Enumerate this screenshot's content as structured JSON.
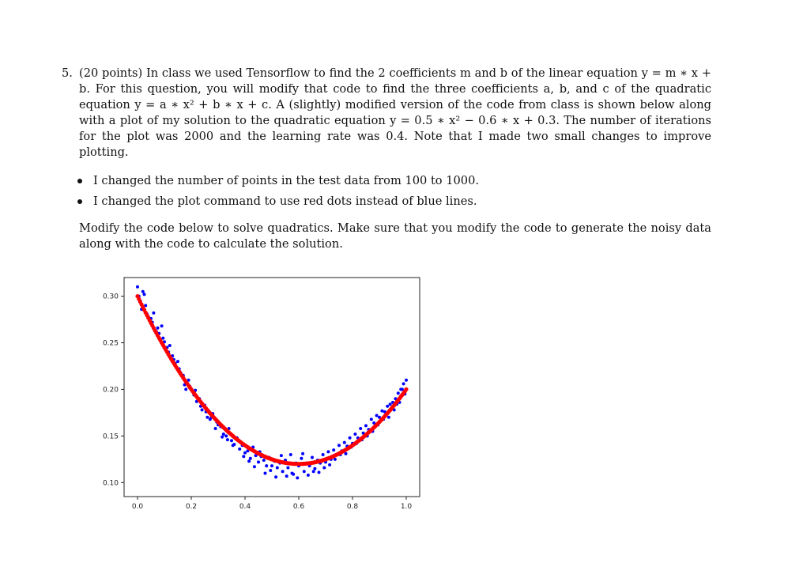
{
  "problem": {
    "number": "5.",
    "intro": "(20 points) In class we used Tensorflow to find the 2 coefficients m and b of the linear equation y = m ∗ x + b. For this question, you will modify that code to find the three coefficients a, b, and c of the quadratic equation y = a ∗ x² + b ∗ x + c. A (slightly) modified version of the code from class is shown below along with a plot of my solution to the quadratic equation y = 0.5 ∗ x² − 0.6 ∗ x + 0.3. The number of iterations for the plot was 2000 and the learning rate was 0.4. Note that I made two small changes to improve plotting.",
    "bullets": [
      "I changed the number of points in the test data from 100 to 1000.",
      "I changed the plot command to use red dots instead of blue lines."
    ],
    "instruction": "Modify the code below to solve quadratics. Make sure that you modify the code to generate the noisy data along with the code to calculate the solution."
  },
  "chart_data": {
    "type": "scatter",
    "xlim": [
      -0.05,
      1.05
    ],
    "ylim": [
      0.085,
      0.32
    ],
    "xticks": [
      "0.0",
      "0.2",
      "0.4",
      "0.6",
      "0.8",
      "1.0"
    ],
    "xtick_values": [
      0.0,
      0.2,
      0.4,
      0.6,
      0.8,
      1.0
    ],
    "yticks": [
      "0.10",
      "0.15",
      "0.20",
      "0.25",
      "0.30"
    ],
    "ytick_values": [
      0.1,
      0.15,
      0.2,
      0.25,
      0.3
    ],
    "series": [
      {
        "kind": "noisy data points",
        "color": "#0000ff",
        "points": [
          [
            0.0,
            0.31
          ],
          [
            0.01,
            0.295
          ],
          [
            0.02,
            0.305
          ],
          [
            0.03,
            0.29
          ],
          [
            0.04,
            0.278
          ],
          [
            0.05,
            0.276
          ],
          [
            0.06,
            0.282
          ],
          [
            0.07,
            0.262
          ],
          [
            0.08,
            0.26
          ],
          [
            0.09,
            0.268
          ],
          [
            0.1,
            0.251
          ],
          [
            0.11,
            0.245
          ],
          [
            0.12,
            0.247
          ],
          [
            0.13,
            0.236
          ],
          [
            0.14,
            0.228
          ],
          [
            0.15,
            0.23
          ],
          [
            0.16,
            0.218
          ],
          [
            0.17,
            0.215
          ],
          [
            0.18,
            0.2
          ],
          [
            0.19,
            0.21
          ],
          [
            0.2,
            0.2
          ],
          [
            0.21,
            0.194
          ],
          [
            0.22,
            0.187
          ],
          [
            0.23,
            0.19
          ],
          [
            0.24,
            0.178
          ],
          [
            0.25,
            0.183
          ],
          [
            0.26,
            0.17
          ],
          [
            0.27,
            0.168
          ],
          [
            0.28,
            0.174
          ],
          [
            0.29,
            0.158
          ],
          [
            0.3,
            0.162
          ],
          [
            0.31,
            0.16
          ],
          [
            0.32,
            0.152
          ],
          [
            0.33,
            0.15
          ],
          [
            0.34,
            0.158
          ],
          [
            0.35,
            0.145
          ],
          [
            0.36,
            0.141
          ],
          [
            0.37,
            0.148
          ],
          [
            0.38,
            0.136
          ],
          [
            0.39,
            0.14
          ],
          [
            0.4,
            0.132
          ],
          [
            0.41,
            0.134
          ],
          [
            0.42,
            0.126
          ],
          [
            0.43,
            0.138
          ],
          [
            0.44,
            0.129
          ],
          [
            0.45,
            0.122
          ],
          [
            0.46,
            0.128
          ],
          [
            0.47,
            0.124
          ],
          [
            0.48,
            0.118
          ],
          [
            0.49,
            0.127
          ],
          [
            0.5,
            0.118
          ],
          [
            0.51,
            0.123
          ],
          [
            0.52,
            0.116
          ],
          [
            0.53,
            0.121
          ],
          [
            0.54,
            0.112
          ],
          [
            0.55,
            0.124
          ],
          [
            0.56,
            0.116
          ],
          [
            0.57,
            0.13
          ],
          [
            0.58,
            0.109
          ],
          [
            0.59,
            0.121
          ],
          [
            0.6,
            0.118
          ],
          [
            0.61,
            0.126
          ],
          [
            0.62,
            0.112
          ],
          [
            0.63,
            0.121
          ],
          [
            0.64,
            0.118
          ],
          [
            0.65,
            0.127
          ],
          [
            0.66,
            0.115
          ],
          [
            0.67,
            0.124
          ],
          [
            0.68,
            0.121
          ],
          [
            0.69,
            0.13
          ],
          [
            0.7,
            0.122
          ],
          [
            0.71,
            0.133
          ],
          [
            0.72,
            0.125
          ],
          [
            0.73,
            0.135
          ],
          [
            0.74,
            0.13
          ],
          [
            0.75,
            0.14
          ],
          [
            0.76,
            0.134
          ],
          [
            0.77,
            0.143
          ],
          [
            0.78,
            0.139
          ],
          [
            0.79,
            0.148
          ],
          [
            0.8,
            0.142
          ],
          [
            0.81,
            0.152
          ],
          [
            0.82,
            0.148
          ],
          [
            0.83,
            0.158
          ],
          [
            0.84,
            0.153
          ],
          [
            0.85,
            0.161
          ],
          [
            0.86,
            0.157
          ],
          [
            0.87,
            0.168
          ],
          [
            0.88,
            0.164
          ],
          [
            0.89,
            0.172
          ],
          [
            0.9,
            0.17
          ],
          [
            0.91,
            0.177
          ],
          [
            0.92,
            0.176
          ],
          [
            0.93,
            0.182
          ],
          [
            0.94,
            0.184
          ],
          [
            0.95,
            0.186
          ],
          [
            0.96,
            0.19
          ],
          [
            0.97,
            0.196
          ],
          [
            0.98,
            0.2
          ],
          [
            0.99,
            0.206
          ],
          [
            1.0,
            0.21
          ],
          [
            0.005,
            0.3
          ],
          [
            0.015,
            0.286
          ],
          [
            0.025,
            0.302
          ],
          [
            0.035,
            0.281
          ],
          [
            0.055,
            0.272
          ],
          [
            0.075,
            0.266
          ],
          [
            0.095,
            0.255
          ],
          [
            0.115,
            0.24
          ],
          [
            0.135,
            0.232
          ],
          [
            0.155,
            0.222
          ],
          [
            0.175,
            0.205
          ],
          [
            0.195,
            0.203
          ],
          [
            0.215,
            0.199
          ],
          [
            0.235,
            0.182
          ],
          [
            0.255,
            0.176
          ],
          [
            0.275,
            0.17
          ],
          [
            0.295,
            0.165
          ],
          [
            0.315,
            0.149
          ],
          [
            0.335,
            0.146
          ],
          [
            0.355,
            0.14
          ],
          [
            0.375,
            0.145
          ],
          [
            0.395,
            0.128
          ],
          [
            0.415,
            0.123
          ],
          [
            0.435,
            0.117
          ],
          [
            0.455,
            0.133
          ],
          [
            0.475,
            0.11
          ],
          [
            0.495,
            0.113
          ],
          [
            0.515,
            0.106
          ],
          [
            0.535,
            0.129
          ],
          [
            0.555,
            0.107
          ],
          [
            0.575,
            0.11
          ],
          [
            0.595,
            0.105
          ],
          [
            0.615,
            0.131
          ],
          [
            0.635,
            0.108
          ],
          [
            0.655,
            0.112
          ],
          [
            0.675,
            0.111
          ],
          [
            0.695,
            0.116
          ],
          [
            0.715,
            0.119
          ],
          [
            0.735,
            0.125
          ],
          [
            0.755,
            0.13
          ],
          [
            0.775,
            0.131
          ],
          [
            0.795,
            0.138
          ],
          [
            0.815,
            0.142
          ],
          [
            0.835,
            0.146
          ],
          [
            0.855,
            0.15
          ],
          [
            0.875,
            0.155
          ],
          [
            0.895,
            0.162
          ],
          [
            0.915,
            0.168
          ],
          [
            0.935,
            0.17
          ],
          [
            0.955,
            0.178
          ],
          [
            0.975,
            0.186
          ],
          [
            0.995,
            0.195
          ],
          [
            0.985,
            0.2
          ],
          [
            0.965,
            0.184
          ]
        ]
      },
      {
        "kind": "fitted curve (red dots)",
        "color": "#ff0000",
        "equation": {
          "a": 0.5,
          "b": -0.6,
          "c": 0.3
        }
      }
    ]
  }
}
